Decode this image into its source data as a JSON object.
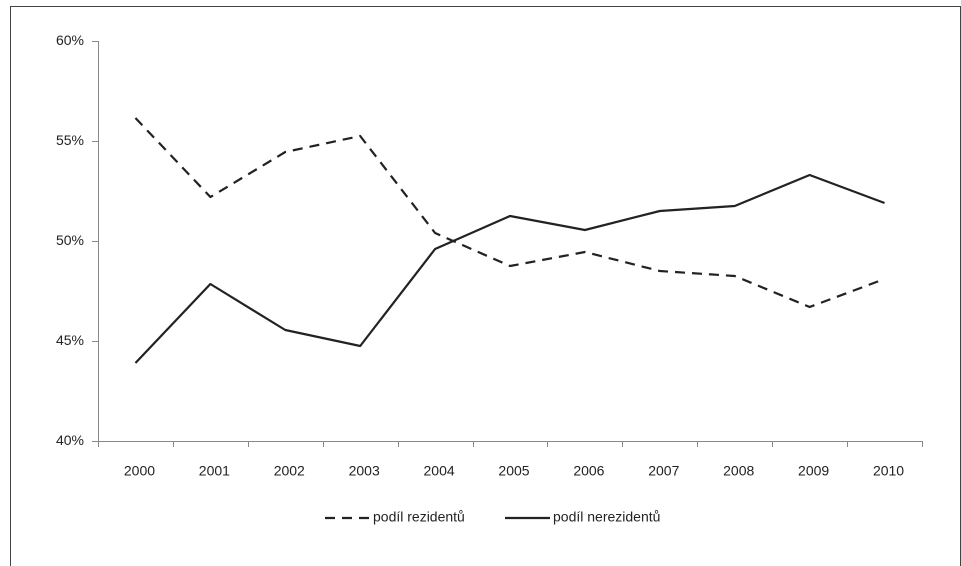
{
  "chart_data": {
    "type": "line",
    "categories": [
      "2000",
      "2001",
      "2002",
      "2003",
      "2004",
      "2005",
      "2006",
      "2007",
      "2008",
      "2009",
      "2010"
    ],
    "series": [
      {
        "name": "podíl rezidentů",
        "color": "#222222",
        "dash": "10,7",
        "values": [
          56.15,
          52.2,
          54.45,
          55.25,
          50.4,
          48.75,
          49.45,
          48.5,
          48.25,
          46.7,
          48.1
        ]
      },
      {
        "name": "podíl nerezidentů",
        "color": "#222222",
        "values": [
          43.9,
          47.85,
          45.55,
          44.75,
          49.6,
          51.25,
          50.55,
          51.5,
          51.75,
          53.3,
          51.9
        ]
      }
    ],
    "ylim": [
      40,
      60
    ],
    "yticks": [
      {
        "value": 40,
        "label": "40%"
      },
      {
        "value": 45,
        "label": "45%"
      },
      {
        "value": 50,
        "label": "50%"
      },
      {
        "value": 55,
        "label": "55%"
      },
      {
        "value": 60,
        "label": "60%"
      }
    ],
    "legend": "bottom"
  }
}
